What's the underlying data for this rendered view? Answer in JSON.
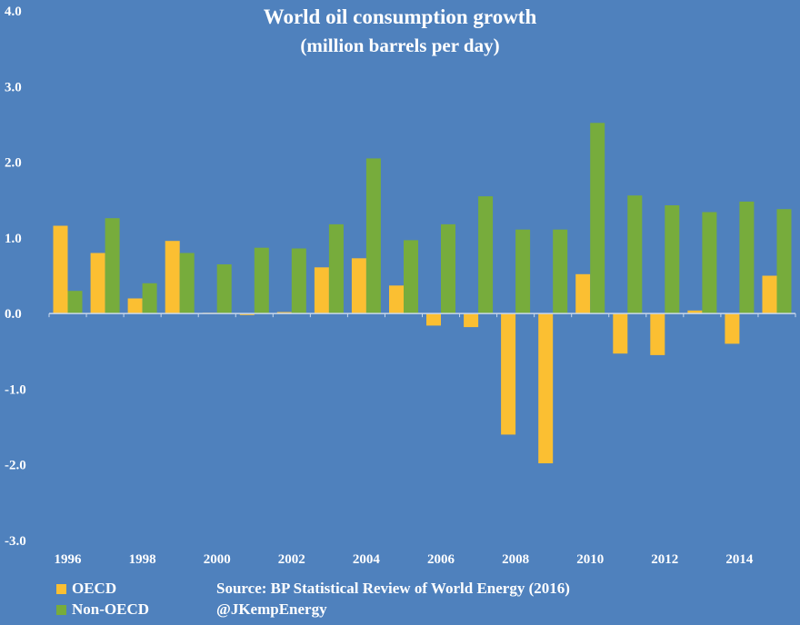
{
  "colors": {
    "background": "#4f81bd",
    "oecd": "#fbbf32",
    "non_oecd": "#77ac3c",
    "axis": "#c9d8ec",
    "text": "#ffffff"
  },
  "chart_data": {
    "type": "bar",
    "title": "World oil consumption growth",
    "subtitle": "(million barrels per day)",
    "xlabel": "",
    "ylabel": "",
    "ylim": [
      -3.0,
      4.0
    ],
    "yticks": [
      "4.0",
      "3.0",
      "2.0",
      "1.0",
      "0.0",
      "-1.0",
      "-2.0",
      "-3.0"
    ],
    "ytick_values": [
      4,
      3,
      2,
      1,
      0,
      -1,
      -2,
      -3
    ],
    "categories": [
      "1996",
      "1997",
      "1998",
      "1999",
      "2000",
      "2001",
      "2002",
      "2003",
      "2004",
      "2005",
      "2006",
      "2007",
      "2008",
      "2009",
      "2010",
      "2011",
      "2012",
      "2013",
      "2014",
      "2015"
    ],
    "xtick_labels": [
      "1996",
      "",
      "1998",
      "",
      "2000",
      "",
      "2002",
      "",
      "2004",
      "",
      "2006",
      "",
      "2008",
      "",
      "2010",
      "",
      "2012",
      "",
      "2014",
      ""
    ],
    "grid": false,
    "legend_position": "bottom-left",
    "series": [
      {
        "name": "OECD",
        "color": "#fbbf32",
        "values": [
          1.16,
          0.8,
          0.2,
          0.96,
          0.01,
          -0.02,
          0.02,
          0.61,
          0.73,
          0.37,
          -0.16,
          -0.18,
          -1.6,
          -1.98,
          0.52,
          -0.53,
          -0.55,
          0.04,
          -0.4,
          0.5
        ]
      },
      {
        "name": "Non-OECD",
        "color": "#77ac3c",
        "values": [
          0.3,
          1.26,
          0.4,
          0.8,
          0.65,
          0.87,
          0.86,
          1.18,
          2.05,
          0.97,
          1.18,
          1.55,
          1.11,
          1.11,
          2.52,
          1.56,
          1.43,
          1.34,
          1.48,
          1.38
        ]
      }
    ]
  },
  "footer": {
    "source": "Source: BP Statistical Review of World Energy (2016)",
    "handle": "@JKempEnergy"
  }
}
